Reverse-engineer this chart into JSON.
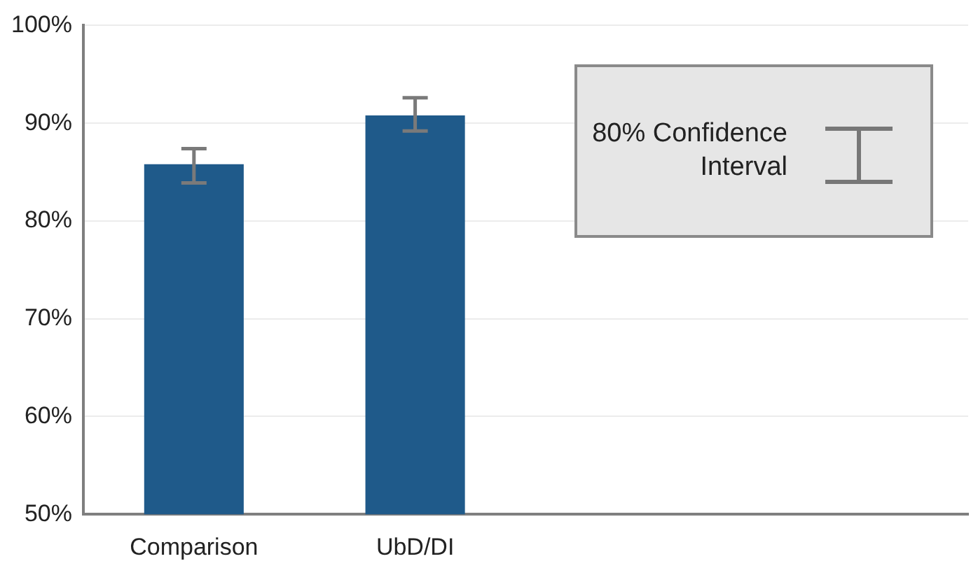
{
  "chart_data": {
    "type": "bar",
    "categories": [
      "Comparison",
      "UbD/DI",
      null,
      null
    ],
    "values": [
      85.8,
      90.8,
      null,
      null
    ],
    "errors": [
      [
        83.9,
        87.4
      ],
      [
        89.2,
        92.6
      ],
      null,
      null
    ],
    "color": "#1f5a8a",
    "ylim": [
      50,
      100
    ],
    "yticks": [
      {
        "value": 50,
        "label": "50%"
      },
      {
        "value": 60,
        "label": "60%"
      },
      {
        "value": 70,
        "label": "70%"
      },
      {
        "value": 80,
        "label": "80%"
      },
      {
        "value": 90,
        "label": "90%"
      },
      {
        "value": 100,
        "label": "100%"
      }
    ],
    "grid": "y",
    "annotations": [
      "80% Confidence Interval"
    ]
  }
}
